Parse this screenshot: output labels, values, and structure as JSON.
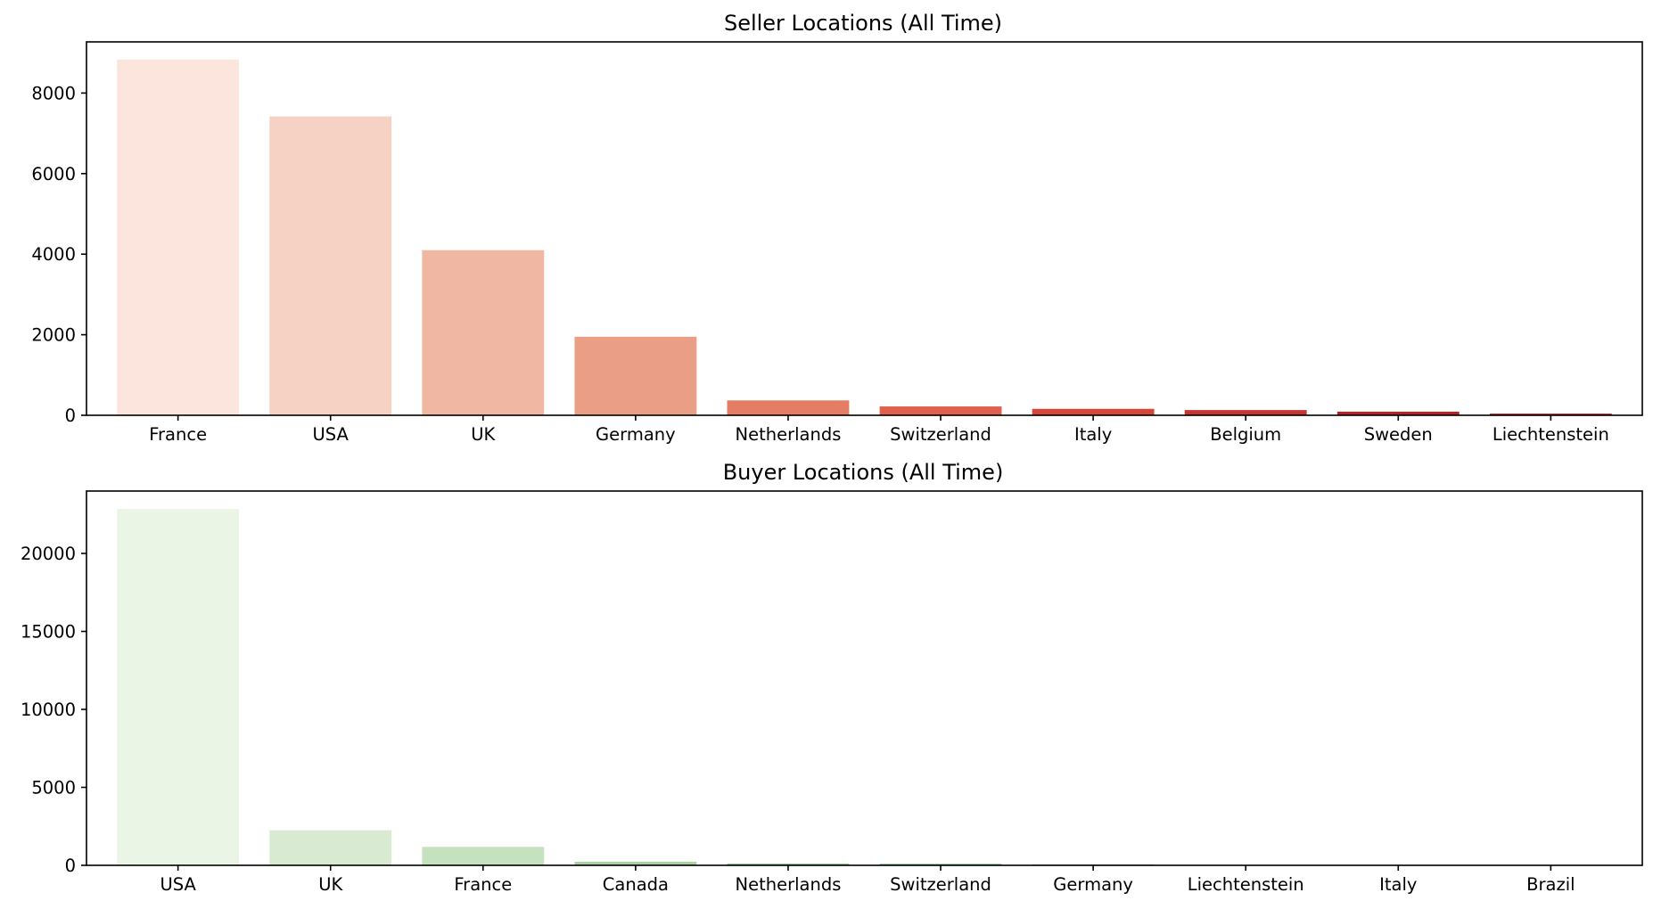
{
  "chart_data": [
    {
      "type": "bar",
      "title": "Seller Locations (All Time)",
      "xlabel": "",
      "ylabel": "",
      "categories": [
        "France",
        "USA",
        "UK",
        "Germany",
        "Netherlands",
        "Switzerland",
        "Italy",
        "Belgium",
        "Sweden",
        "Liechtenstein"
      ],
      "values": [
        8830,
        7420,
        4100,
        1950,
        370,
        220,
        160,
        130,
        90,
        40
      ],
      "colors": [
        "#fbe5dc",
        "#f5d2c4",
        "#f0b8a2",
        "#ea9e86",
        "#e57c64",
        "#e0604b",
        "#d64638",
        "#c73431",
        "#b22429",
        "#9c1a22"
      ],
      "ylim": [
        0,
        9270
      ],
      "yticks": [
        0,
        2000,
        4000,
        6000,
        8000
      ],
      "ytick_labels": [
        "0",
        "2000",
        "4000",
        "6000",
        "8000"
      ],
      "grid": false,
      "legend": false
    },
    {
      "type": "bar",
      "title": "Buyer Locations (All Time)",
      "xlabel": "",
      "ylabel": "",
      "categories": [
        "USA",
        "UK",
        "France",
        "Canada",
        "Netherlands",
        "Switzerland",
        "Germany",
        "Liechtenstein",
        "Italy",
        "Brazil"
      ],
      "values": [
        22850,
        2250,
        1180,
        230,
        110,
        90,
        50,
        20,
        10,
        5
      ],
      "colors": [
        "#ebf5e6",
        "#d8ebd2",
        "#c4e2bd",
        "#a8d3a0",
        "#8cc487",
        "#6fb46e",
        "#55a15a",
        "#3e8c47",
        "#2a7639",
        "#175f2d"
      ],
      "ylim": [
        0,
        24000
      ],
      "yticks": [
        0,
        5000,
        10000,
        15000,
        20000
      ],
      "ytick_labels": [
        "0",
        "5000",
        "10000",
        "15000",
        "20000"
      ],
      "grid": false,
      "legend": false
    }
  ]
}
